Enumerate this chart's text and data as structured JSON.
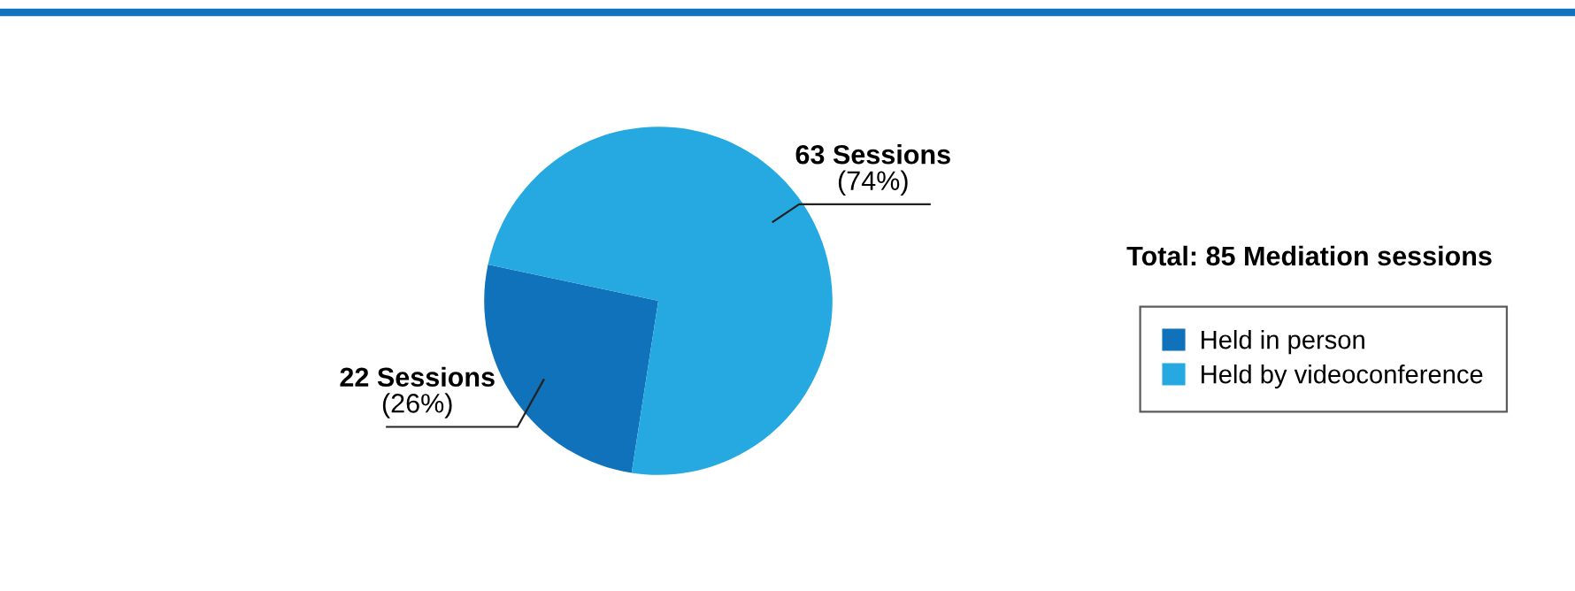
{
  "chart_data": {
    "type": "pie",
    "categories": [
      "Held in person",
      "Held by videoconference"
    ],
    "values": [
      22,
      63
    ],
    "colors": [
      "#1072ba",
      "#25a9e0"
    ],
    "value_labels": [
      "22 Sessions\n(26%)",
      "63 Sessions\n(74%)"
    ],
    "legend_title": "Total: 85 Mediation sessions",
    "legend": "right"
  }
}
